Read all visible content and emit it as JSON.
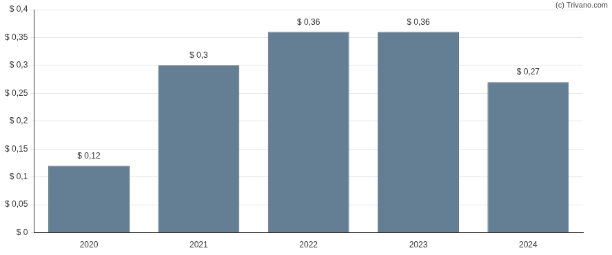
{
  "chart_data": {
    "type": "bar",
    "annotations": [
      "(c) Trivano.com"
    ],
    "categories": [
      "2020",
      "2021",
      "2022",
      "2023",
      "2024"
    ],
    "values": [
      0.12,
      0.3,
      0.36,
      0.36,
      0.27
    ],
    "value_labels": [
      "$ 0,12",
      "$ 0,3",
      "$ 0,36",
      "$ 0,36",
      "$ 0,27"
    ],
    "data_labels": true,
    "color": "#647f94",
    "ylim": [
      0,
      0.4
    ],
    "yticks": [
      {
        "value": 0,
        "label": "$ 0"
      },
      {
        "value": 0.05,
        "label": "$ 0,05"
      },
      {
        "value": 0.1,
        "label": "$ 0,1"
      },
      {
        "value": 0.15,
        "label": "$ 0,15"
      },
      {
        "value": 0.2,
        "label": "$ 0,2"
      },
      {
        "value": 0.25,
        "label": "$ 0,25"
      },
      {
        "value": 0.3,
        "label": "$ 0,3"
      },
      {
        "value": 0.35,
        "label": "$ 0,35"
      },
      {
        "value": 0.4,
        "label": "$ 0,4"
      }
    ],
    "grid": true
  }
}
